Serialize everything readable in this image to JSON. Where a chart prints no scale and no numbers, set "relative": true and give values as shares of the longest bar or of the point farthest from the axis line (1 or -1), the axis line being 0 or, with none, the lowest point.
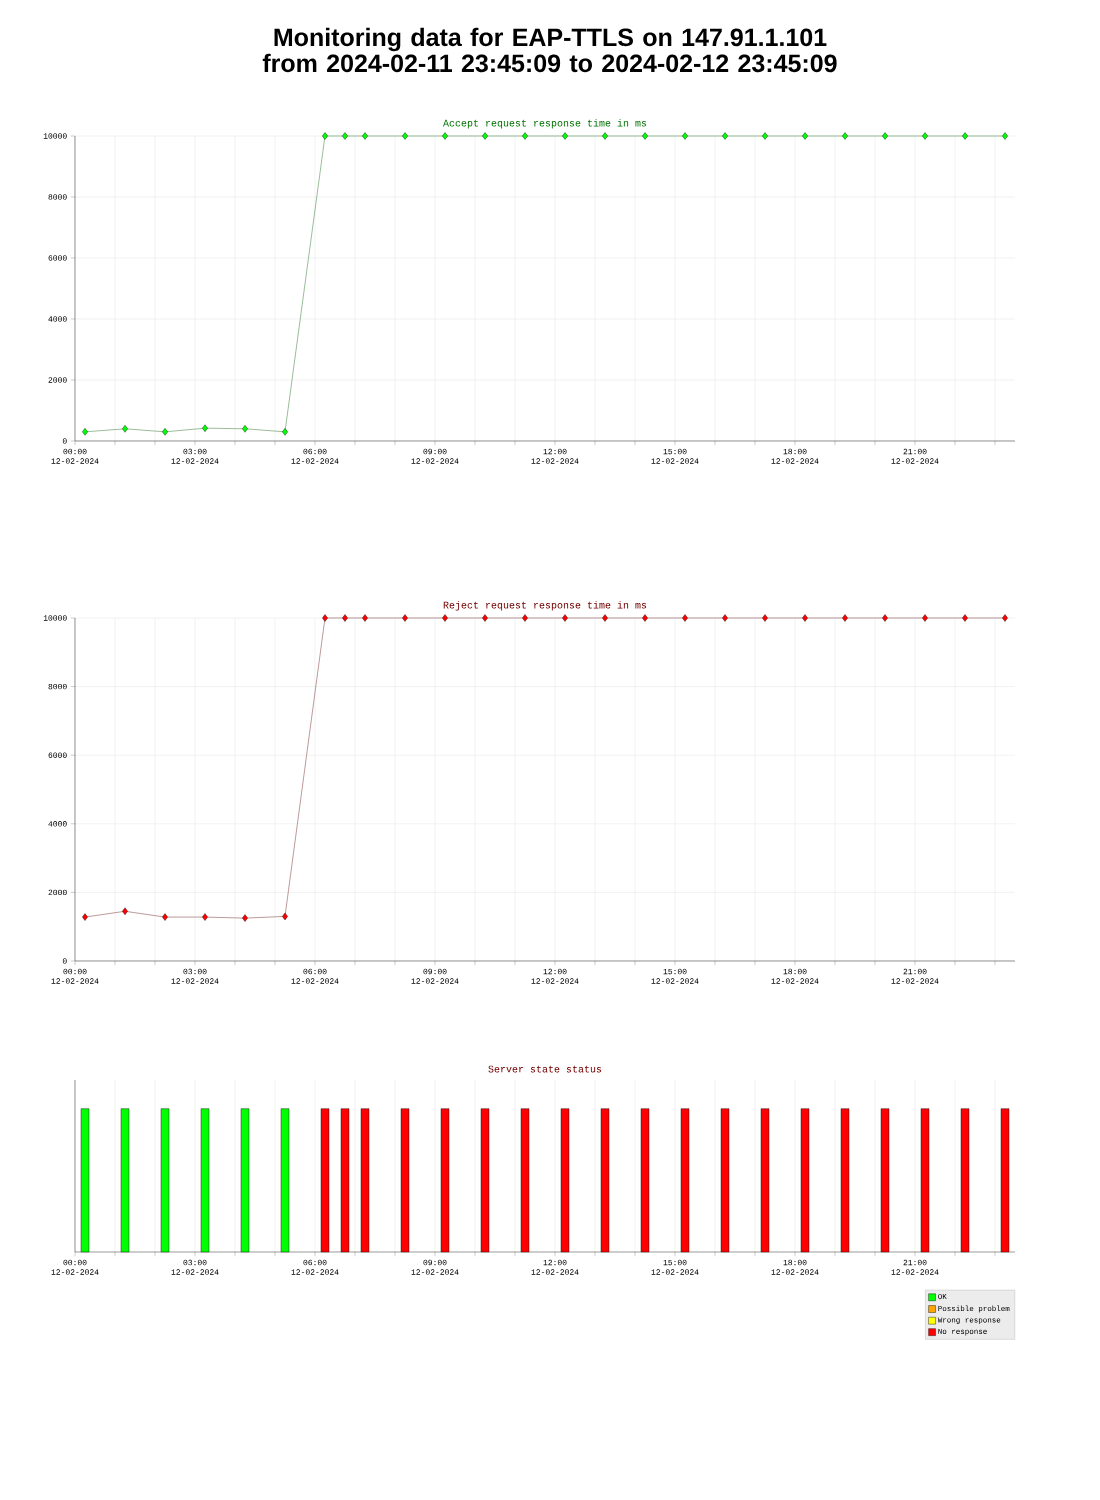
{
  "chart_data": [
    {
      "type": "line",
      "title": "Monitoring data for EAP-TTLS on 147.91.1.101 from 2024-02-11 23:45:09 to 2024-02-12 23:45:09",
      "subtitle": "Accept request response time in ms",
      "x": [
        "2024-02-12T00:15",
        "2024-02-12T01:15",
        "2024-02-12T02:15",
        "2024-02-12T03:15",
        "2024-02-12T04:15",
        "2024-02-12T05:15",
        "2024-02-12T06:15",
        "2024-02-12T06:45",
        "2024-02-12T07:15",
        "2024-02-12T08:15",
        "2024-02-12T09:15",
        "2024-02-12T10:15",
        "2024-02-12T11:15",
        "2024-02-12T12:15",
        "2024-02-12T13:15",
        "2024-02-12T14:15",
        "2024-02-12T15:15",
        "2024-02-12T16:15",
        "2024-02-12T17:15",
        "2024-02-12T18:15",
        "2024-02-12T19:15",
        "2024-02-12T20:15",
        "2024-02-12T21:15",
        "2024-02-12T22:15",
        "2024-02-12T23:15"
      ],
      "series": [
        {
          "color": "#00ff00",
          "values": [
            300,
            400,
            300,
            420,
            400,
            300,
            10000,
            10000,
            10000,
            10000,
            10000,
            10000,
            10000,
            10000,
            10000,
            10000,
            10000,
            10000,
            10000,
            10000,
            10000,
            10000,
            10000,
            10000,
            10000
          ]
        }
      ],
      "xlim": [
        "2024-02-12T00:00",
        "2024-02-12T23:30"
      ],
      "xticks": [
        {
          "value": "2024-02-12T00:00",
          "label": "00:00 12-02-2024"
        },
        {
          "value": "2024-02-12T01:00",
          "label": null
        },
        {
          "value": "2024-02-12T02:00",
          "label": null
        },
        {
          "value": "2024-02-12T03:00",
          "label": "03:00 12-02-2024"
        },
        {
          "value": "2024-02-12T04:00",
          "label": null
        },
        {
          "value": "2024-02-12T05:00",
          "label": null
        },
        {
          "value": "2024-02-12T06:00",
          "label": "06:00 12-02-2024"
        },
        {
          "value": "2024-02-12T07:00",
          "label": null
        },
        {
          "value": "2024-02-12T08:00",
          "label": null
        },
        {
          "value": "2024-02-12T09:00",
          "label": "09:00 12-02-2024"
        },
        {
          "value": "2024-02-12T10:00",
          "label": null
        },
        {
          "value": "2024-02-12T11:00",
          "label": null
        },
        {
          "value": "2024-02-12T12:00",
          "label": "12:00 12-02-2024"
        },
        {
          "value": "2024-02-12T13:00",
          "label": null
        },
        {
          "value": "2024-02-12T14:00",
          "label": null
        },
        {
          "value": "2024-02-12T15:00",
          "label": "15:00 12-02-2024"
        },
        {
          "value": "2024-02-12T16:00",
          "label": null
        },
        {
          "value": "2024-02-12T17:00",
          "label": null
        },
        {
          "value": "2024-02-12T18:00",
          "label": "18:00 12-02-2024"
        },
        {
          "value": "2024-02-12T19:00",
          "label": null
        },
        {
          "value": "2024-02-12T20:00",
          "label": null
        },
        {
          "value": "2024-02-12T21:00",
          "label": "21:00 12-02-2024"
        },
        {
          "value": "2024-02-12T22:00",
          "label": null
        },
        {
          "value": "2024-02-12T23:00",
          "label": null
        }
      ],
      "ylim": [
        0,
        10000
      ],
      "yticks": [
        0,
        2000,
        4000,
        6000,
        8000,
        10000
      ],
      "grid": true,
      "marker": "diamond",
      "line_style": "solid"
    },
    {
      "type": "line",
      "title": "Reject request response time in ms",
      "x": [
        "2024-02-12T00:15",
        "2024-02-12T01:15",
        "2024-02-12T02:15",
        "2024-02-12T03:15",
        "2024-02-12T04:15",
        "2024-02-12T05:15",
        "2024-02-12T06:15",
        "2024-02-12T06:45",
        "2024-02-12T07:15",
        "2024-02-12T08:15",
        "2024-02-12T09:15",
        "2024-02-12T10:15",
        "2024-02-12T11:15",
        "2024-02-12T12:15",
        "2024-02-12T13:15",
        "2024-02-12T14:15",
        "2024-02-12T15:15",
        "2024-02-12T16:15",
        "2024-02-12T17:15",
        "2024-02-12T18:15",
        "2024-02-12T19:15",
        "2024-02-12T20:15",
        "2024-02-12T21:15",
        "2024-02-12T22:15",
        "2024-02-12T23:15"
      ],
      "series": [
        {
          "color": "#ff0000",
          "values": [
            1280,
            1450,
            1280,
            1280,
            1250,
            1300,
            10000,
            10000,
            10000,
            10000,
            10000,
            10000,
            10000,
            10000,
            10000,
            10000,
            10000,
            10000,
            10000,
            10000,
            10000,
            10000,
            10000,
            10000,
            10000
          ]
        }
      ],
      "xlim": [
        "2024-02-12T00:00",
        "2024-02-12T23:30"
      ],
      "xticks": [
        {
          "value": "2024-02-12T00:00",
          "label": "00:00 12-02-2024"
        },
        {
          "value": "2024-02-12T01:00",
          "label": null
        },
        {
          "value": "2024-02-12T02:00",
          "label": null
        },
        {
          "value": "2024-02-12T03:00",
          "label": "03:00 12-02-2024"
        },
        {
          "value": "2024-02-12T04:00",
          "label": null
        },
        {
          "value": "2024-02-12T05:00",
          "label": null
        },
        {
          "value": "2024-02-12T06:00",
          "label": "06:00 12-02-2024"
        },
        {
          "value": "2024-02-12T07:00",
          "label": null
        },
        {
          "value": "2024-02-12T08:00",
          "label": null
        },
        {
          "value": "2024-02-12T09:00",
          "label": "09:00 12-02-2024"
        },
        {
          "value": "2024-02-12T10:00",
          "label": null
        },
        {
          "value": "2024-02-12T11:00",
          "label": null
        },
        {
          "value": "2024-02-12T12:00",
          "label": "12:00 12-02-2024"
        },
        {
          "value": "2024-02-12T13:00",
          "label": null
        },
        {
          "value": "2024-02-12T14:00",
          "label": null
        },
        {
          "value": "2024-02-12T15:00",
          "label": "15:00 12-02-2024"
        },
        {
          "value": "2024-02-12T16:00",
          "label": null
        },
        {
          "value": "2024-02-12T17:00",
          "label": null
        },
        {
          "value": "2024-02-12T18:00",
          "label": "18:00 12-02-2024"
        },
        {
          "value": "2024-02-12T19:00",
          "label": null
        },
        {
          "value": "2024-02-12T20:00",
          "label": null
        },
        {
          "value": "2024-02-12T21:00",
          "label": "21:00 12-02-2024"
        },
        {
          "value": "2024-02-12T22:00",
          "label": null
        },
        {
          "value": "2024-02-12T23:00",
          "label": null
        }
      ],
      "ylim": [
        0,
        10000
      ],
      "yticks": [
        0,
        2000,
        4000,
        6000,
        8000,
        10000
      ],
      "grid": true,
      "marker": "diamond",
      "line_style": "solid"
    },
    {
      "type": "bar",
      "title": "Server state status",
      "relative": true,
      "x": [
        "2024-02-12T00:15",
        "2024-02-12T01:15",
        "2024-02-12T02:15",
        "2024-02-12T03:15",
        "2024-02-12T04:15",
        "2024-02-12T05:15",
        "2024-02-12T06:15",
        "2024-02-12T06:45",
        "2024-02-12T07:15",
        "2024-02-12T08:15",
        "2024-02-12T09:15",
        "2024-02-12T10:15",
        "2024-02-12T11:15",
        "2024-02-12T12:15",
        "2024-02-12T13:15",
        "2024-02-12T14:15",
        "2024-02-12T15:15",
        "2024-02-12T16:15",
        "2024-02-12T17:15",
        "2024-02-12T18:15",
        "2024-02-12T19:15",
        "2024-02-12T20:15",
        "2024-02-12T21:15",
        "2024-02-12T22:15",
        "2024-02-12T23:15"
      ],
      "series": [
        {
          "name": "OK",
          "color": "#00ff00",
          "values": [
            1,
            1,
            1,
            1,
            1,
            1,
            null,
            null,
            null,
            null,
            null,
            null,
            null,
            null,
            null,
            null,
            null,
            null,
            null,
            null,
            null,
            null,
            null,
            null,
            null
          ]
        },
        {
          "name": "Possible problem",
          "color": "#ffa500",
          "values": [
            null,
            null,
            null,
            null,
            null,
            null,
            null,
            null,
            null,
            null,
            null,
            null,
            null,
            null,
            null,
            null,
            null,
            null,
            null,
            null,
            null,
            null,
            null,
            null,
            null
          ]
        },
        {
          "name": "Wrong response",
          "color": "#ffff00",
          "values": [
            null,
            null,
            null,
            null,
            null,
            null,
            null,
            null,
            null,
            null,
            null,
            null,
            null,
            null,
            null,
            null,
            null,
            null,
            null,
            null,
            null,
            null,
            null,
            null,
            null
          ]
        },
        {
          "name": "No response",
          "color": "#ff0000",
          "values": [
            null,
            null,
            null,
            null,
            null,
            null,
            1,
            1,
            1,
            1,
            1,
            1,
            1,
            1,
            1,
            1,
            1,
            1,
            1,
            1,
            1,
            1,
            1,
            1,
            1
          ]
        }
      ],
      "xlim": [
        "2024-02-12T00:00",
        "2024-02-12T23:30"
      ],
      "xticks": [
        {
          "value": "2024-02-12T00:00",
          "label": "00:00 12-02-2024"
        },
        {
          "value": "2024-02-12T01:00",
          "label": null
        },
        {
          "value": "2024-02-12T02:00",
          "label": null
        },
        {
          "value": "2024-02-12T03:00",
          "label": "03:00 12-02-2024"
        },
        {
          "value": "2024-02-12T04:00",
          "label": null
        },
        {
          "value": "2024-02-12T05:00",
          "label": null
        },
        {
          "value": "2024-02-12T06:00",
          "label": "06:00 12-02-2024"
        },
        {
          "value": "2024-02-12T07:00",
          "label": null
        },
        {
          "value": "2024-02-12T08:00",
          "label": null
        },
        {
          "value": "2024-02-12T09:00",
          "label": "09:00 12-02-2024"
        },
        {
          "value": "2024-02-12T10:00",
          "label": null
        },
        {
          "value": "2024-02-12T11:00",
          "label": null
        },
        {
          "value": "2024-02-12T12:00",
          "label": "12:00 12-02-2024"
        },
        {
          "value": "2024-02-12T13:00",
          "label": null
        },
        {
          "value": "2024-02-12T14:00",
          "label": null
        },
        {
          "value": "2024-02-12T15:00",
          "label": "15:00 12-02-2024"
        },
        {
          "value": "2024-02-12T16:00",
          "label": null
        },
        {
          "value": "2024-02-12T17:00",
          "label": null
        },
        {
          "value": "2024-02-12T18:00",
          "label": "18:00 12-02-2024"
        },
        {
          "value": "2024-02-12T19:00",
          "label": null
        },
        {
          "value": "2024-02-12T20:00",
          "label": null
        },
        {
          "value": "2024-02-12T21:00",
          "label": "21:00 12-02-2024"
        },
        {
          "value": "2024-02-12T22:00",
          "label": null
        },
        {
          "value": "2024-02-12T23:00",
          "label": null
        }
      ],
      "grid": "x",
      "legend": "bottom right",
      "tick_labels": "x"
    }
  ]
}
